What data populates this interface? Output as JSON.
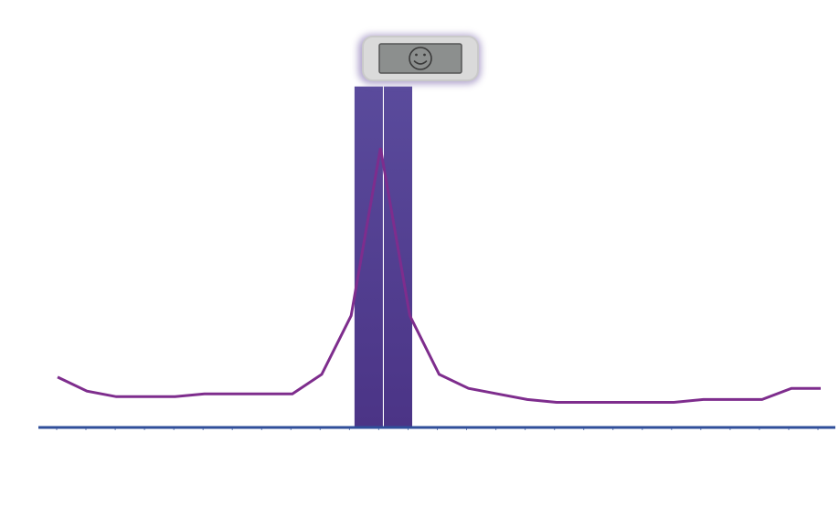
{
  "colors": {
    "background": "#ffffff",
    "bar_top": "#5a4b9c",
    "bar_bottom": "#4b3486",
    "curve": "#7e2d8d",
    "baseline": "#2f4e9a",
    "device_outer": "#d8d8d8",
    "device_screen": "#8c8f8e",
    "device_glow": "#7b68ab"
  },
  "icons": {
    "device": "smiley-face-icon"
  },
  "chart_data": {
    "type": "line",
    "x": [
      0,
      1,
      2,
      3,
      4,
      5,
      6,
      7,
      8,
      9,
      10,
      11,
      12,
      13,
      14,
      15,
      16,
      17,
      18,
      19,
      20,
      21,
      22,
      23,
      24,
      25,
      26
    ],
    "series": [
      {
        "values": [
          0.18,
          0.13,
          0.11,
          0.11,
          0.11,
          0.12,
          0.12,
          0.12,
          0.12,
          0.19,
          0.4,
          1.0,
          0.4,
          0.19,
          0.14,
          0.12,
          0.1,
          0.09,
          0.09,
          0.09,
          0.09,
          0.09,
          0.1,
          0.1,
          0.1,
          0.14,
          0.14
        ]
      }
    ],
    "bars": [
      {
        "center": 10.6,
        "height": 1.22
      },
      {
        "center": 11.6,
        "height": 1.22
      }
    ],
    "xlim": [
      0,
      26
    ],
    "ylim": [
      0,
      1
    ],
    "tick_count": 27,
    "grid": false,
    "legend": "none"
  }
}
